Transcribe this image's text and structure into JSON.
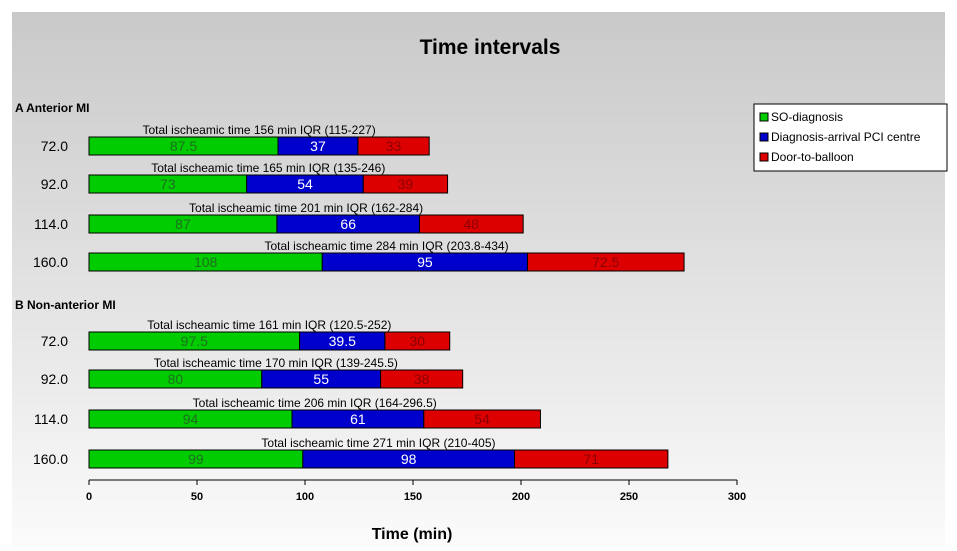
{
  "chart_data": {
    "type": "bar",
    "orientation": "horizontal",
    "stacked": true,
    "title": "Time intervals",
    "xlabel": "Time (min)",
    "xlim": [
      0,
      300
    ],
    "xticks": [
      "0",
      "50",
      "100",
      "150",
      "200",
      "250",
      "300"
    ],
    "legend_position": "top-right",
    "series": [
      {
        "name": "SO-diagnosis",
        "color": "#00cc00",
        "label_color": "#1f6e1f"
      },
      {
        "name": "Diagnosis-arrival PCI centre",
        "color": "#0000cc",
        "label_color": "#ffffff"
      },
      {
        "name": "Door-to-balloon",
        "color": "#dd0000",
        "label_color": "#8a0000"
      }
    ],
    "groups": [
      {
        "label": "A Anterior MI",
        "rows": [
          {
            "category": "72.0",
            "annotation": "Total isch​eamic time  156 min IQR (115-227)",
            "values": [
              87.5,
              37,
              33
            ],
            "labels": [
              "87.5",
              "37",
              "33"
            ]
          },
          {
            "category": "92.0",
            "annotation": "Total ischeamic time  165 min IQR (135-246)",
            "values": [
              73,
              54,
              39
            ],
            "labels": [
              "73",
              "54",
              "39"
            ]
          },
          {
            "category": "114.0",
            "annotation": "Total ischeamic time  201 min IQR (162-284)",
            "values": [
              87,
              66,
              48
            ],
            "labels": [
              "87",
              "66",
              "48"
            ]
          },
          {
            "category": "160.0",
            "annotation": "Total ischeamic time  284 min IQR (203.8-434)",
            "values": [
              108,
              95,
              72.5
            ],
            "labels": [
              "108",
              "95",
              "72.5"
            ]
          }
        ]
      },
      {
        "label": "B Non-anterior MI",
        "rows": [
          {
            "category": "72.0",
            "annotation": "Total ischeamic time  161 min IQR (120.5-252)",
            "values": [
              97.5,
              39.5,
              30
            ],
            "labels": [
              "97.5",
              "39.5",
              "30"
            ]
          },
          {
            "category": "92.0",
            "annotation": "Total ischeamic time  170 min IQR (139-245.5)",
            "values": [
              80,
              55,
              38
            ],
            "labels": [
              "80",
              "55",
              "38"
            ]
          },
          {
            "category": "114.0",
            "annotation": "Total ischeamic time  206 min IQR (164-296.5)",
            "values": [
              94,
              61,
              54
            ],
            "labels": [
              "94",
              "61",
              "54"
            ]
          },
          {
            "category": "160.0",
            "annotation": "Total ischeamic time  271 min IQR (210-405)",
            "values": [
              99,
              98,
              71
            ],
            "labels": [
              "99",
              "98",
              "71"
            ]
          }
        ]
      }
    ]
  }
}
